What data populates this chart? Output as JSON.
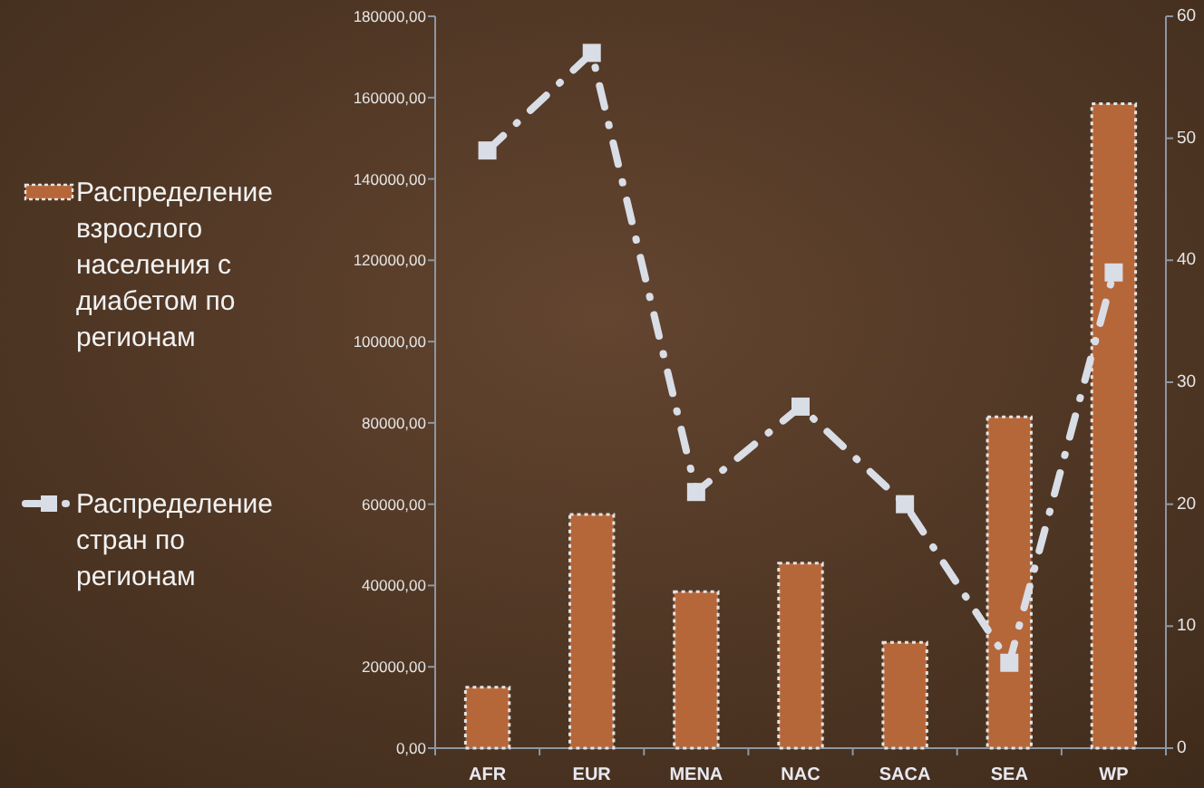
{
  "chart_data": {
    "type": "bar",
    "categories": [
      "AFR",
      "EUR",
      "MENA",
      "NAC",
      "SACA",
      "SEA",
      "WP"
    ],
    "series": [
      {
        "name": "Распределение взрослого населения с диабетом по регионам",
        "color": "#b5673a",
        "values": [
          15000,
          57500,
          38500,
          45500,
          26000,
          81500,
          158500
        ]
      },
      {
        "name": "Распределение стран по регионам",
        "type": "line",
        "axis": "y2",
        "color": "#d9dde6",
        "values": [
          49,
          57,
          21,
          28,
          20,
          7,
          39
        ]
      }
    ],
    "ylim": [
      0,
      180000
    ],
    "yticks": [
      {
        "value": 0,
        "label": "0,00"
      },
      {
        "value": 20000,
        "label": "20000,00"
      },
      {
        "value": 40000,
        "label": "40000,00"
      },
      {
        "value": 60000,
        "label": "60000,00"
      },
      {
        "value": 80000,
        "label": "80000,00"
      },
      {
        "value": 100000,
        "label": "100000,00"
      },
      {
        "value": 120000,
        "label": "120000,00"
      },
      {
        "value": 140000,
        "label": "140000,00"
      },
      {
        "value": 160000,
        "label": "160000,00"
      },
      {
        "value": 180000,
        "label": "180000,00"
      }
    ],
    "y2lim": [
      0,
      60
    ],
    "y2ticks": [
      0,
      10,
      20,
      30,
      40,
      50,
      60
    ],
    "legend": "left",
    "marker": "square",
    "line_style": "dashed"
  }
}
